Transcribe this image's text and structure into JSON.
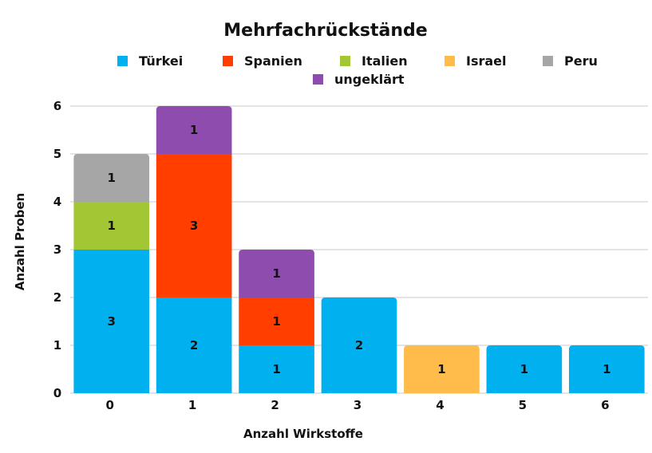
{
  "chart_data": {
    "type": "bar",
    "stacked": true,
    "title": "Mehrfachrückstände",
    "xlabel": "Anzahl Wirkstoffe",
    "ylabel": "Anzahl Proben",
    "ylim": [
      0,
      6
    ],
    "yticks": [
      "0",
      "1",
      "2",
      "3",
      "4",
      "5",
      "6"
    ],
    "categories": [
      "0",
      "1",
      "2",
      "3",
      "4",
      "5",
      "6"
    ],
    "grid": true,
    "legend_position": "top",
    "series": [
      {
        "name": "Türkei",
        "color": "#00B0EF",
        "values": [
          3,
          2,
          1,
          2,
          0,
          1,
          1
        ]
      },
      {
        "name": "Spanien",
        "color": "#FF3E00",
        "values": [
          0,
          3,
          1,
          0,
          0,
          0,
          0
        ]
      },
      {
        "name": "Italien",
        "color": "#A2C634",
        "values": [
          1,
          0,
          0,
          0,
          0,
          0,
          0
        ]
      },
      {
        "name": "Israel",
        "color": "#FFBC4A",
        "values": [
          0,
          0,
          0,
          0,
          1,
          0,
          0
        ]
      },
      {
        "name": "Peru",
        "color": "#A6A6A6",
        "values": [
          1,
          0,
          0,
          0,
          0,
          0,
          0
        ]
      },
      {
        "name": "ungeklärt",
        "color": "#8E4CAE",
        "values": [
          0,
          1,
          1,
          0,
          0,
          0,
          0
        ]
      }
    ]
  }
}
